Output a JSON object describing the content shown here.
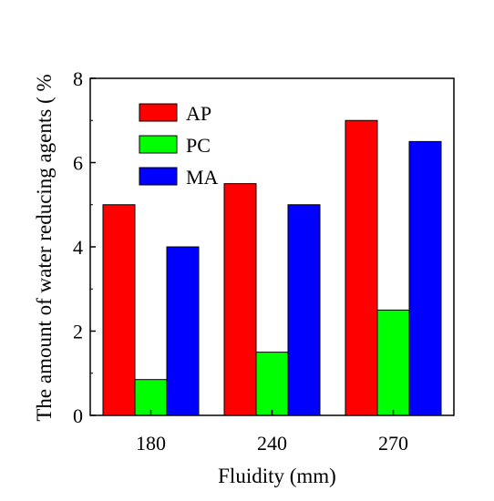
{
  "chart_data": {
    "type": "bar",
    "title": "",
    "xlabel": "Fluidity (mm)",
    "ylabel": "The amount of water reducing agents ( %",
    "categories": [
      "180",
      "240",
      "270"
    ],
    "series": [
      {
        "name": "AP",
        "values": [
          5.0,
          5.5,
          7.0
        ],
        "color": "#ff0000"
      },
      {
        "name": "PC",
        "values": [
          0.85,
          1.5,
          2.5
        ],
        "color": "#00ff00"
      },
      {
        "name": "MA",
        "values": [
          4.0,
          5.0,
          6.5
        ],
        "color": "#0000ff"
      }
    ],
    "ylim": [
      0,
      8
    ],
    "yticks": [
      "0",
      "2",
      "4",
      "6",
      "8"
    ],
    "grid": false,
    "legend_position": "top-left"
  }
}
